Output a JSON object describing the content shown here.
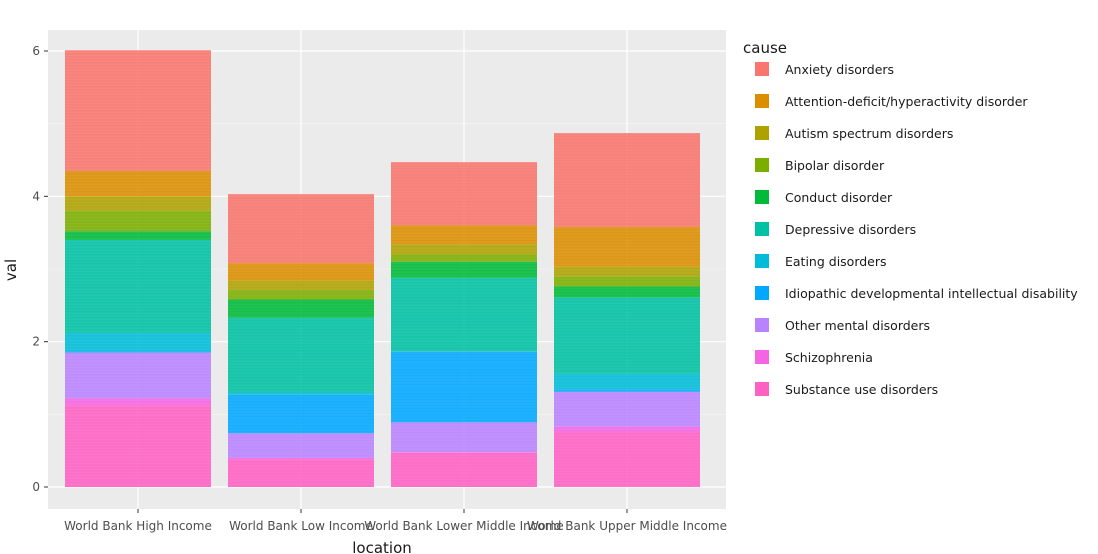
{
  "chart_data": {
    "type": "bar",
    "stacked": true,
    "xlabel": "location",
    "ylabel": "val",
    "ylim": [
      -0.3,
      6.4
    ],
    "yticks": [
      0,
      2,
      4,
      6
    ],
    "grid": true,
    "legend_title": "cause",
    "legend_position": "right",
    "categories": [
      "World Bank High Income",
      "World Bank Low Income",
      "World Bank Lower Middle Income",
      "World Bank Upper Middle Income"
    ],
    "series": [
      {
        "name": "Substance use disorders",
        "color": "#FF61C3",
        "values": [
          1.12,
          0.38,
          0.47,
          0.75
        ]
      },
      {
        "name": "Schizophrenia",
        "color": "#F564E3",
        "values": [
          0.1,
          0.02,
          0.01,
          0.08
        ]
      },
      {
        "name": "Other mental disorders",
        "color": "#B983FF",
        "values": [
          0.63,
          0.34,
          0.41,
          0.48
        ]
      },
      {
        "name": "Idiopathic developmental intellectual disability",
        "color": "#00A9FF",
        "values": [
          0.02,
          0.53,
          0.97,
          0.03
        ]
      },
      {
        "name": "Eating disorders",
        "color": "#00BCD8",
        "values": [
          0.25,
          0.03,
          0.01,
          0.22
        ]
      },
      {
        "name": "Depressive disorders",
        "color": "#00C1A3",
        "values": [
          1.28,
          1.03,
          1.01,
          1.05
        ]
      },
      {
        "name": "Conduct disorder",
        "color": "#00BA38",
        "values": [
          0.12,
          0.25,
          0.22,
          0.15
        ]
      },
      {
        "name": "Bipolar disorder",
        "color": "#7CAE00",
        "values": [
          0.28,
          0.13,
          0.1,
          0.14
        ]
      },
      {
        "name": "Autism spectrum disorders",
        "color": "#AEA200",
        "values": [
          0.2,
          0.13,
          0.14,
          0.13
        ]
      },
      {
        "name": "Attention-deficit/hyperactivity disorder",
        "color": "#DB8E00",
        "values": [
          0.35,
          0.24,
          0.26,
          0.55
        ]
      },
      {
        "name": "Anxiety disorders",
        "color": "#F8766D",
        "values": [
          1.66,
          0.95,
          0.87,
          1.29
        ]
      }
    ],
    "legend_order": [
      "Anxiety disorders",
      "Attention-deficit/hyperactivity disorder",
      "Autism spectrum disorders",
      "Bipolar disorder",
      "Conduct disorder",
      "Depressive disorders",
      "Eating disorders",
      "Idiopathic developmental intellectual disability",
      "Other mental disorders",
      "Schizophrenia",
      "Substance use disorders"
    ]
  }
}
